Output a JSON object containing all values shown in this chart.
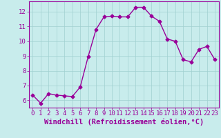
{
  "x": [
    0,
    1,
    2,
    3,
    4,
    5,
    6,
    7,
    8,
    9,
    10,
    11,
    12,
    13,
    14,
    15,
    16,
    17,
    18,
    19,
    20,
    21,
    22,
    23
  ],
  "y": [
    6.35,
    5.8,
    6.45,
    6.35,
    6.3,
    6.25,
    6.9,
    8.95,
    10.8,
    11.65,
    11.7,
    11.65,
    11.65,
    12.3,
    12.3,
    11.7,
    11.35,
    10.15,
    10.0,
    8.75,
    8.6,
    9.45,
    9.65,
    8.75
  ],
  "line_color": "#990099",
  "marker": "D",
  "marker_size": 2.5,
  "bg_color": "#c8ecec",
  "grid_color": "#a0d0d0",
  "xlabel": "Windchill (Refroidissement éolien,°C)",
  "xlabel_fontsize": 7.5,
  "ylim": [
    5.5,
    12.7
  ],
  "xlim": [
    -0.5,
    23.5
  ],
  "yticks": [
    6,
    7,
    8,
    9,
    10,
    11,
    12
  ],
  "xticks": [
    0,
    1,
    2,
    3,
    4,
    5,
    6,
    7,
    8,
    9,
    10,
    11,
    12,
    13,
    14,
    15,
    16,
    17,
    18,
    19,
    20,
    21,
    22,
    23
  ],
  "tick_fontsize": 6.5,
  "tick_color": "#990099",
  "line_width": 1.0,
  "spine_color": "#990099"
}
